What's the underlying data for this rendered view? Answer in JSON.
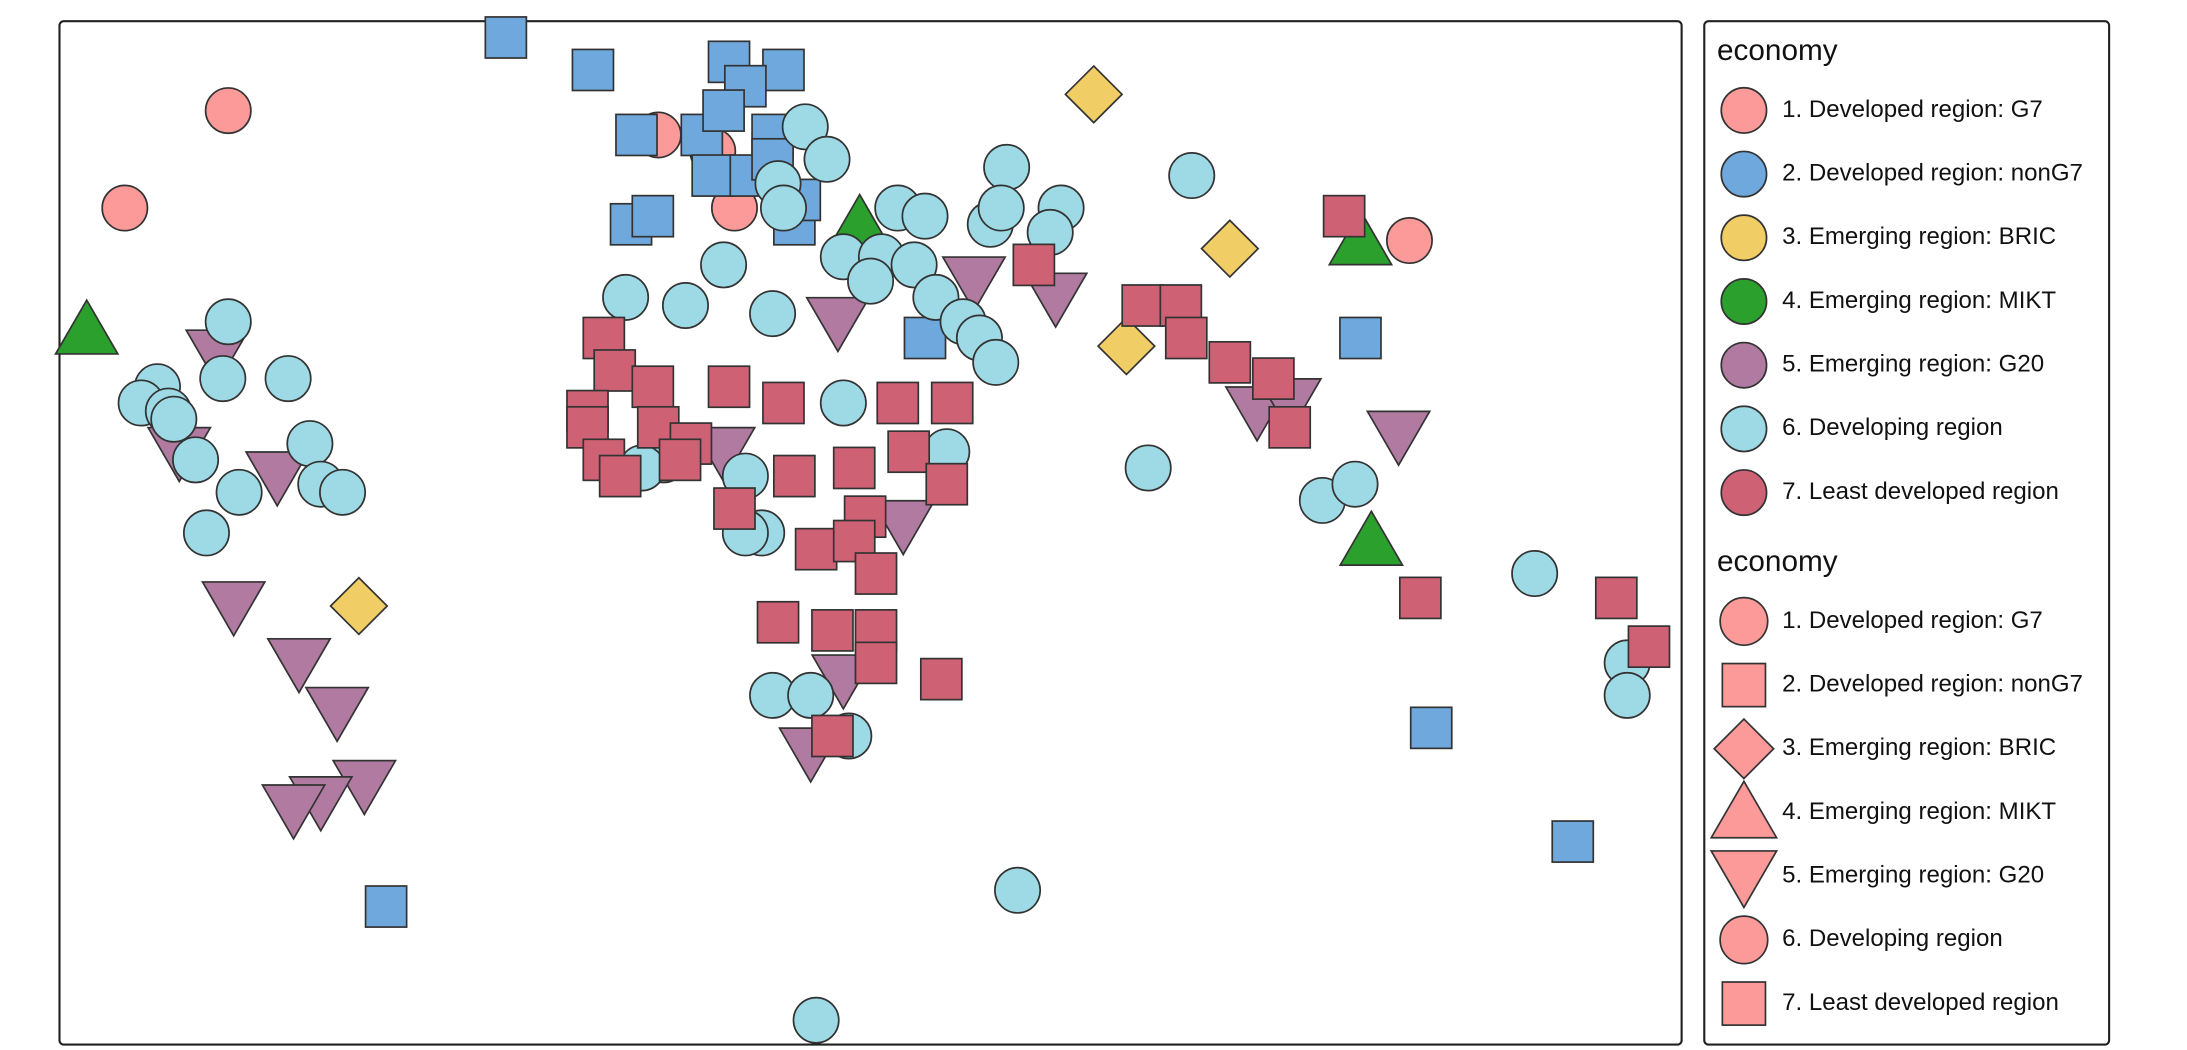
{
  "chart_data": {
    "type": "scatter",
    "legend_title": "economy",
    "xlim": [
      -110,
      188
    ],
    "ylim": [
      -61,
      65
    ],
    "series": [
      {
        "name": "1. Developed region: G7",
        "color": "#fb9a99",
        "shape": "circle",
        "x": [
          -79,
          -98,
          0,
          10,
          14,
          138
        ],
        "y": [
          54,
          42,
          51,
          49,
          42,
          38
        ]
      },
      {
        "name": "2. Developed region: nonG7",
        "color": "#6fa8dc",
        "shape": "square",
        "x": [
          -28,
          -12,
          13,
          23,
          16,
          -4,
          8,
          21,
          10,
          17,
          -5,
          -1,
          25,
          49,
          129,
          142,
          168,
          -50,
          21,
          26,
          12
        ],
        "y": [
          63,
          59,
          60,
          59,
          57,
          51,
          51,
          51,
          46,
          46,
          40,
          41,
          40,
          26,
          26,
          -22,
          -36,
          -44,
          48,
          43,
          54
        ]
      },
      {
        "name": "3. Emerging region: BRIC",
        "color": "#f1cd66",
        "shape": "diamond",
        "x": [
          80,
          105,
          86,
          -55
        ],
        "y": [
          56,
          37,
          25,
          -7
        ]
      },
      {
        "name": "4. Emerging region: MIKT",
        "color": "#2ca02c",
        "shape": "triangle",
        "x": [
          -105,
          37,
          129,
          131
        ],
        "y": [
          27,
          40,
          38,
          1
        ]
      },
      {
        "name": "5. Emerging region: G20",
        "color": "#b07aa1",
        "shape": "triangle-down",
        "x": [
          -81,
          -88,
          -70,
          -78,
          -66,
          -59,
          -54,
          -62,
          -67,
          33,
          12,
          58,
          73,
          45,
          34,
          28,
          110,
          116,
          136
        ],
        "y": [
          24,
          12,
          9,
          -7,
          -14,
          -20,
          -29,
          -31,
          -32,
          28,
          12,
          33,
          31,
          3,
          -16,
          -25,
          17,
          18,
          14
        ]
      },
      {
        "name": "6. Developing region",
        "color": "#9edae5",
        "shape": "circle",
        "x": [
          -79,
          -92,
          -95,
          -90,
          -89,
          -80,
          -68,
          -85,
          -64,
          -62,
          -58,
          -77,
          -83,
          27,
          31,
          22,
          23,
          44,
          49,
          64,
          74,
          72,
          61,
          63,
          34,
          41,
          39,
          47,
          51,
          56,
          59,
          62,
          12,
          -6,
          5,
          21,
          34,
          53,
          16,
          19,
          16,
          1,
          -3,
          21,
          28,
          35,
          98,
          90,
          122,
          128,
          161,
          178,
          178,
          66,
          29
        ],
        "y": [
          28,
          20,
          18,
          17,
          16,
          21,
          21,
          11,
          13,
          8,
          7,
          7,
          2,
          52,
          48,
          45,
          42,
          42,
          41,
          47,
          42,
          39,
          40,
          42,
          36,
          36,
          33,
          35,
          31,
          28,
          26,
          23,
          35,
          31,
          30,
          29,
          18,
          12,
          9,
          2,
          2,
          11,
          10,
          -18,
          -18,
          -23,
          46,
          10,
          6,
          8,
          -3,
          -14,
          -18,
          -42,
          -58
        ]
      },
      {
        "name": "7. Least developed region",
        "color": "#cf6175",
        "shape": "square",
        "x": [
          126,
          69,
          89,
          96,
          97,
          105,
          113,
          116,
          140,
          176,
          182,
          -10,
          -8,
          -1,
          13,
          23,
          44,
          54,
          -13,
          -13,
          0,
          6,
          -10,
          -7,
          4,
          25,
          36,
          46,
          53,
          14,
          38,
          29,
          36,
          40,
          22,
          32,
          40,
          40,
          52,
          32
        ],
        "y": [
          41,
          35,
          30,
          30,
          26,
          23,
          21,
          15,
          -6,
          -6,
          -12,
          26,
          22,
          20,
          20,
          18,
          18,
          18,
          17,
          15,
          15,
          13,
          11,
          9,
          11,
          9,
          10,
          12,
          8,
          5,
          4,
          0,
          1,
          -3,
          -9,
          -10,
          -10,
          -14,
          -16,
          -23
        ]
      }
    ]
  }
}
